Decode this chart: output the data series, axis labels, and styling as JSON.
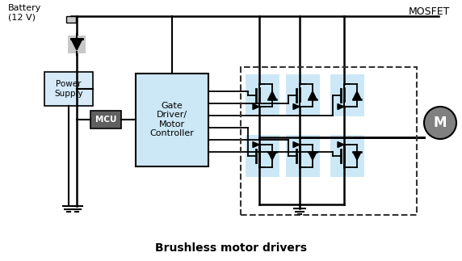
{
  "title": "Brushless motor drivers",
  "battery_label": "Battery\n(12 V)",
  "mosfet_label": "MOSFET",
  "power_supply_label": "Power\nSupply",
  "mcu_label": "MCU",
  "gate_driver_label": "Gate\nDriver/\nMotor\nController",
  "motor_label": "M",
  "bg_color": "#ffffff",
  "box_light_blue": "#cce8f6",
  "box_gray_light": "#c8c8c8",
  "box_dark_gray": "#606060",
  "line_color": "#000000",
  "dashed_color": "#444444",
  "ps_blue": "#d6eaf8"
}
